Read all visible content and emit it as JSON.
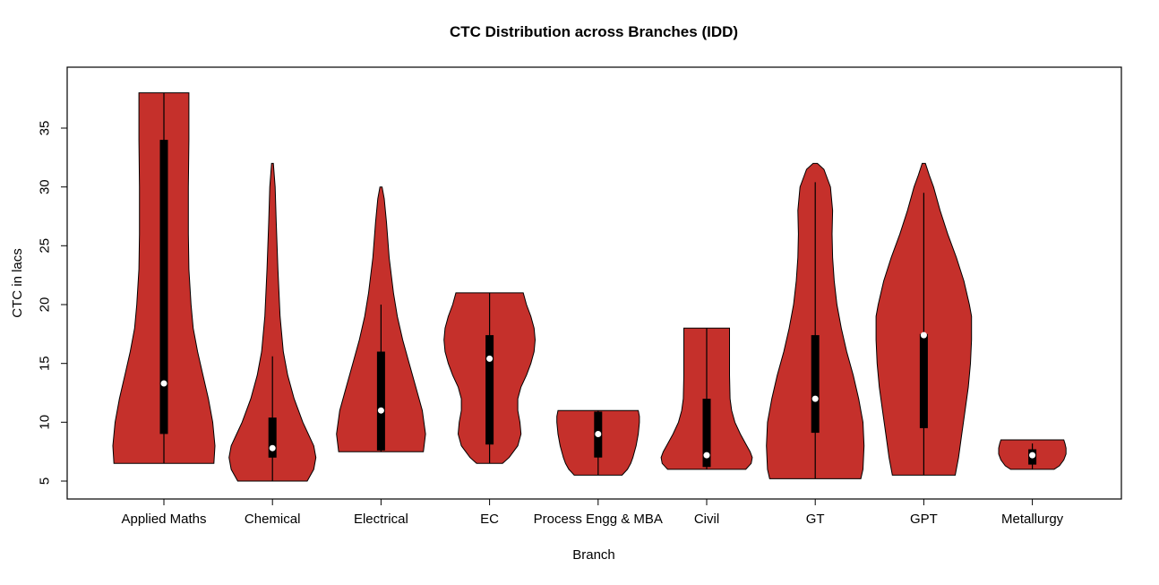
{
  "title": "CTC Distribution across Branches (IDD)",
  "colors": {
    "violin_fill": "#C5302B",
    "violin_stroke": "#000000",
    "box": "#000000",
    "median_dot": "#FFFFFF",
    "plot_border": "#000000",
    "background": "#FFFFFF"
  },
  "chart_data": {
    "type": "violin",
    "title": "CTC Distribution across Branches (IDD)",
    "xlabel": "Branch",
    "ylabel": "CTC in lacs",
    "ylim": [
      3.5,
      40
    ],
    "yticks": [
      5,
      10,
      15,
      20,
      25,
      30,
      35
    ],
    "grid": false,
    "legend": "none",
    "categories": [
      "Applied Maths",
      "Chemical",
      "Electrical",
      "EC",
      "Process Engg & MBA",
      "Civil",
      "GT",
      "GPT",
      "Metallurgy"
    ],
    "series": [
      {
        "name": "Applied Maths",
        "range": [
          6.5,
          38
        ],
        "whiskers": [
          6.5,
          38
        ],
        "q1": 9.0,
        "median": 13.3,
        "q3": 34.0,
        "profile": [
          [
            6.5,
            0.46
          ],
          [
            8,
            0.47
          ],
          [
            10,
            0.45
          ],
          [
            12,
            0.41
          ],
          [
            14,
            0.36
          ],
          [
            16,
            0.31
          ],
          [
            18,
            0.27
          ],
          [
            20,
            0.25
          ],
          [
            23,
            0.23
          ],
          [
            26,
            0.225
          ],
          [
            30,
            0.225
          ],
          [
            34,
            0.23
          ],
          [
            37,
            0.23
          ],
          [
            38,
            0.23
          ]
        ]
      },
      {
        "name": "Chemical",
        "range": [
          5,
          32
        ],
        "whiskers": [
          5,
          15.6
        ],
        "q1": 7.0,
        "median": 7.8,
        "q3": 10.4,
        "profile": [
          [
            5,
            0.32
          ],
          [
            6,
            0.38
          ],
          [
            7,
            0.4
          ],
          [
            8,
            0.38
          ],
          [
            9,
            0.33
          ],
          [
            10,
            0.28
          ],
          [
            12,
            0.2
          ],
          [
            14,
            0.14
          ],
          [
            16,
            0.1
          ],
          [
            19,
            0.07
          ],
          [
            23,
            0.05
          ],
          [
            27,
            0.035
          ],
          [
            30,
            0.025
          ],
          [
            32,
            0.008
          ]
        ]
      },
      {
        "name": "Electrical",
        "range": [
          7.5,
          30
        ],
        "whiskers": [
          7.5,
          20
        ],
        "q1": 7.6,
        "median": 11.0,
        "q3": 16.0,
        "profile": [
          [
            7.5,
            0.39
          ],
          [
            9,
            0.41
          ],
          [
            11,
            0.38
          ],
          [
            13,
            0.32
          ],
          [
            15,
            0.26
          ],
          [
            17,
            0.2
          ],
          [
            19,
            0.15
          ],
          [
            21,
            0.115
          ],
          [
            24,
            0.075
          ],
          [
            27,
            0.05
          ],
          [
            29,
            0.03
          ],
          [
            30,
            0.01
          ]
        ]
      },
      {
        "name": "EC",
        "range": [
          6.5,
          21
        ],
        "whiskers": [
          6.5,
          21
        ],
        "q1": 8.1,
        "median": 15.4,
        "q3": 17.4,
        "profile": [
          [
            6.5,
            0.12
          ],
          [
            7,
            0.18
          ],
          [
            8,
            0.26
          ],
          [
            9,
            0.29
          ],
          [
            10,
            0.28
          ],
          [
            11,
            0.26
          ],
          [
            12,
            0.26
          ],
          [
            13,
            0.29
          ],
          [
            14,
            0.34
          ],
          [
            15,
            0.38
          ],
          [
            16,
            0.41
          ],
          [
            17,
            0.42
          ],
          [
            18,
            0.41
          ],
          [
            19,
            0.38
          ],
          [
            20,
            0.34
          ],
          [
            21,
            0.31
          ]
        ]
      },
      {
        "name": "Process Engg & MBA",
        "range": [
          5.5,
          11
        ],
        "whiskers": [
          5.5,
          11
        ],
        "q1": 7.0,
        "median": 9.0,
        "q3": 10.9,
        "profile": [
          [
            5.5,
            0.22
          ],
          [
            6,
            0.27
          ],
          [
            6.5,
            0.3
          ],
          [
            7,
            0.32
          ],
          [
            8,
            0.35
          ],
          [
            9,
            0.37
          ],
          [
            10,
            0.38
          ],
          [
            10.5,
            0.38
          ],
          [
            11,
            0.37
          ]
        ]
      },
      {
        "name": "Civil",
        "range": [
          6,
          18
        ],
        "whiskers": [
          6,
          18
        ],
        "q1": 6.2,
        "median": 7.2,
        "q3": 12.0,
        "profile": [
          [
            6,
            0.36
          ],
          [
            6.5,
            0.41
          ],
          [
            7,
            0.42
          ],
          [
            7.5,
            0.4
          ],
          [
            8,
            0.37
          ],
          [
            9,
            0.31
          ],
          [
            10,
            0.26
          ],
          [
            11,
            0.23
          ],
          [
            12,
            0.215
          ],
          [
            14,
            0.21
          ],
          [
            16,
            0.21
          ],
          [
            18,
            0.21
          ]
        ]
      },
      {
        "name": "GT",
        "range": [
          5.2,
          32
        ],
        "whiskers": [
          5.2,
          30.4
        ],
        "q1": 9.1,
        "median": 12.0,
        "q3": 17.4,
        "profile": [
          [
            5.2,
            0.42
          ],
          [
            6,
            0.44
          ],
          [
            8,
            0.45
          ],
          [
            10,
            0.44
          ],
          [
            12,
            0.4
          ],
          [
            14,
            0.35
          ],
          [
            16,
            0.29
          ],
          [
            18,
            0.24
          ],
          [
            20,
            0.2
          ],
          [
            22,
            0.175
          ],
          [
            24,
            0.16
          ],
          [
            26,
            0.155
          ],
          [
            28,
            0.16
          ],
          [
            30,
            0.14
          ],
          [
            31.5,
            0.08
          ],
          [
            32,
            0.02
          ]
        ]
      },
      {
        "name": "GPT",
        "range": [
          5.5,
          32
        ],
        "whiskers": [
          5.5,
          29.5
        ],
        "q1": 9.5,
        "median": 17.4,
        "q3": 17.5,
        "profile": [
          [
            5.5,
            0.29
          ],
          [
            7,
            0.32
          ],
          [
            9,
            0.35
          ],
          [
            11,
            0.38
          ],
          [
            13,
            0.41
          ],
          [
            15,
            0.43
          ],
          [
            17,
            0.44
          ],
          [
            19,
            0.44
          ],
          [
            20,
            0.42
          ],
          [
            22,
            0.37
          ],
          [
            24,
            0.3
          ],
          [
            26,
            0.22
          ],
          [
            28,
            0.15
          ],
          [
            30,
            0.09
          ],
          [
            31,
            0.05
          ],
          [
            32,
            0.015
          ]
        ]
      },
      {
        "name": "Metallurgy",
        "range": [
          6,
          8.5
        ],
        "whiskers": [
          6,
          8.2
        ],
        "q1": 6.4,
        "median": 7.2,
        "q3": 7.7,
        "profile": [
          [
            6,
            0.2
          ],
          [
            6.3,
            0.25
          ],
          [
            6.8,
            0.29
          ],
          [
            7.3,
            0.31
          ],
          [
            7.8,
            0.31
          ],
          [
            8.2,
            0.3
          ],
          [
            8.5,
            0.29
          ]
        ]
      }
    ]
  }
}
